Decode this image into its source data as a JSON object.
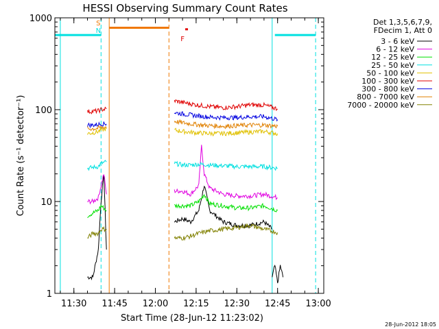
{
  "chart_data": {
    "type": "line",
    "title": "HESSI Observing Summary Count Rates",
    "xlabel": "Start Time (28-Jun-12 11:23:02)",
    "ylabel": "Count Rate (s⁻¹ detector⁻¹)",
    "footer": "28-Jun-2012 18:05",
    "yscale": "log",
    "ylim": [
      1,
      1000
    ],
    "xlim": [
      "11:23",
      "13:02"
    ],
    "x_ticks": [
      "11:30",
      "11:45",
      "12:00",
      "12:15",
      "12:30",
      "12:45",
      "13:00"
    ],
    "y_ticks": [
      "1",
      "10",
      "100",
      "1000"
    ],
    "legend_header": [
      "Det 1,3,5,6,7,9,",
      "FDecim 1, Att 0"
    ],
    "legend_position": "right",
    "markers": [
      {
        "label": "S",
        "time": "11:39",
        "color": "#f07800"
      },
      {
        "label": "N",
        "time": "11:39",
        "color": "#00e0e0"
      },
      {
        "label": "F",
        "time": "12:10",
        "color": "#e00000"
      }
    ],
    "bars": [
      {
        "name": "flare-flag",
        "from": "12:11",
        "to": "12:12",
        "value": 750,
        "color": "#e00000"
      },
      {
        "name": "saa-flag",
        "from": "11:43",
        "to": "12:05",
        "value": 780,
        "color": "#f07800"
      },
      {
        "name": "night-flag-1",
        "from": "11:23",
        "to": "11:40",
        "value": 650,
        "color": "#00e0e0"
      },
      {
        "name": "night-flag-2",
        "from": "12:44",
        "to": "12:59",
        "value": 650,
        "color": "#00e0e0"
      }
    ],
    "vlines": [
      {
        "time": "11:25",
        "color": "#00e0e0",
        "dash": false
      },
      {
        "time": "11:40",
        "color": "#00e0e0",
        "dash": true
      },
      {
        "time": "11:43",
        "color": "#f07800",
        "dash": false
      },
      {
        "time": "12:05",
        "color": "#f07800",
        "dash": true
      },
      {
        "time": "12:43",
        "color": "#00e0e0",
        "dash": false
      },
      {
        "time": "12:59",
        "color": "#00e0e0",
        "dash": true
      }
    ],
    "series": [
      {
        "name": "3 - 6 keV",
        "color": "#000000",
        "segments": [
          {
            "x": [
              "11:35",
              "11:37",
              "11:39",
              "11:40",
              "11:41",
              "11:42"
            ],
            "y": [
              1.5,
              1.5,
              3,
              10,
              20,
              3
            ]
          },
          {
            "x": [
              "12:07",
              "12:10",
              "12:13",
              "12:16",
              "12:18",
              "12:20",
              "12:25",
              "12:30",
              "12:35",
              "12:40",
              "12:43"
            ],
            "y": [
              6,
              6.5,
              6,
              8,
              15,
              8,
              6,
              5.5,
              5.5,
              6,
              5
            ]
          },
          {
            "x": [
              "12:43",
              "12:44",
              "12:45",
              "12:46",
              "12:47"
            ],
            "y": [
              1.5,
              2,
              1.3,
              2,
              1.5
            ]
          }
        ]
      },
      {
        "name": "6 - 12 keV",
        "color": "#e000e0",
        "segments": [
          {
            "x": [
              "11:35",
              "11:37",
              "11:39",
              "11:40",
              "11:41",
              "11:42"
            ],
            "y": [
              10,
              10,
              11,
              15,
              20,
              12
            ]
          },
          {
            "x": [
              "12:07",
              "12:10",
              "12:13",
              "12:16",
              "12:17",
              "12:18",
              "12:20",
              "12:25",
              "12:30",
              "12:35",
              "12:40",
              "12:45"
            ],
            "y": [
              13,
              13,
              12,
              15,
              40,
              20,
              14,
              12,
              11.5,
              11.5,
              12,
              11
            ]
          }
        ]
      },
      {
        "name": "12 - 25 keV",
        "color": "#00e000",
        "segments": [
          {
            "x": [
              "11:35",
              "11:37",
              "11:39",
              "11:40",
              "11:42"
            ],
            "y": [
              7,
              7.5,
              8,
              9,
              8
            ]
          },
          {
            "x": [
              "12:07",
              "12:10",
              "12:13",
              "12:16",
              "12:18",
              "12:20",
              "12:25",
              "12:30",
              "12:35",
              "12:40",
              "12:45"
            ],
            "y": [
              9,
              9,
              9,
              10,
              12,
              9.5,
              9,
              8.5,
              8.5,
              9,
              8
            ]
          }
        ]
      },
      {
        "name": "25 - 50 keV",
        "color": "#00e0e0",
        "segments": [
          {
            "x": [
              "11:35",
              "11:37",
              "11:39",
              "11:40",
              "11:42"
            ],
            "y": [
              23,
              23.5,
              24,
              26,
              27
            ]
          },
          {
            "x": [
              "12:07",
              "12:10",
              "12:13",
              "12:16",
              "12:20",
              "12:25",
              "12:30",
              "12:35",
              "12:40",
              "12:45"
            ],
            "y": [
              26,
              25,
              25,
              25.5,
              25,
              24.5,
              24,
              24,
              24,
              23
            ]
          }
        ]
      },
      {
        "name": "50 - 100 keV",
        "color": "#e0c000",
        "segments": [
          {
            "x": [
              "11:35",
              "11:37",
              "11:39",
              "11:40",
              "11:42"
            ],
            "y": [
              55,
              56,
              58,
              60,
              62
            ]
          },
          {
            "x": [
              "12:07",
              "12:10",
              "12:15",
              "12:20",
              "12:25",
              "12:30",
              "12:35",
              "12:40",
              "12:45"
            ],
            "y": [
              60,
              58,
              56,
              55,
              55,
              56,
              57,
              58,
              55
            ]
          }
        ]
      },
      {
        "name": "100 - 300 keV",
        "color": "#e00000",
        "segments": [
          {
            "x": [
              "11:35",
              "11:37",
              "11:39",
              "11:40",
              "11:42"
            ],
            "y": [
              95,
              96,
              97,
              100,
              102
            ]
          },
          {
            "x": [
              "12:07",
              "12:10",
              "12:15",
              "12:20",
              "12:25",
              "12:30",
              "12:35",
              "12:40",
              "12:45"
            ],
            "y": [
              125,
              120,
              113,
              108,
              105,
              108,
              113,
              112,
              102
            ]
          }
        ]
      },
      {
        "name": "300 - 800 keV",
        "color": "#0000e0",
        "segments": [
          {
            "x": [
              "11:35",
              "11:37",
              "11:39",
              "11:40",
              "11:42"
            ],
            "y": [
              68,
              68,
              69,
              70,
              70
            ]
          },
          {
            "x": [
              "12:07",
              "12:10",
              "12:15",
              "12:20",
              "12:25",
              "12:30",
              "12:35",
              "12:40",
              "12:45"
            ],
            "y": [
              93,
              90,
              86,
              83,
              82,
              82,
              84,
              84,
              78
            ]
          }
        ]
      },
      {
        "name": "800 - 7000 keV",
        "color": "#e08000",
        "segments": [
          {
            "x": [
              "11:35",
              "11:37",
              "11:39",
              "11:40",
              "11:42"
            ],
            "y": [
              62,
              62,
              63,
              64,
              65
            ]
          },
          {
            "x": [
              "12:07",
              "12:10",
              "12:15",
              "12:20",
              "12:25",
              "12:30",
              "12:35",
              "12:40",
              "12:45"
            ],
            "y": [
              75,
              72,
              69,
              67,
              66,
              67,
              68,
              68,
              66
            ]
          }
        ]
      },
      {
        "name": "7000 - 20000 keV",
        "color": "#808000",
        "segments": [
          {
            "x": [
              "11:35",
              "11:37",
              "11:39",
              "11:40",
              "11:42"
            ],
            "y": [
              4,
              4.5,
              4.5,
              5,
              5
            ]
          },
          {
            "x": [
              "12:07",
              "12:10",
              "12:13",
              "12:16",
              "12:20",
              "12:25",
              "12:30",
              "12:35",
              "12:40",
              "12:45"
            ],
            "y": [
              4,
              4,
              4.2,
              4.5,
              4.8,
              5,
              5.2,
              5.5,
              5,
              4.6
            ]
          }
        ]
      }
    ]
  }
}
